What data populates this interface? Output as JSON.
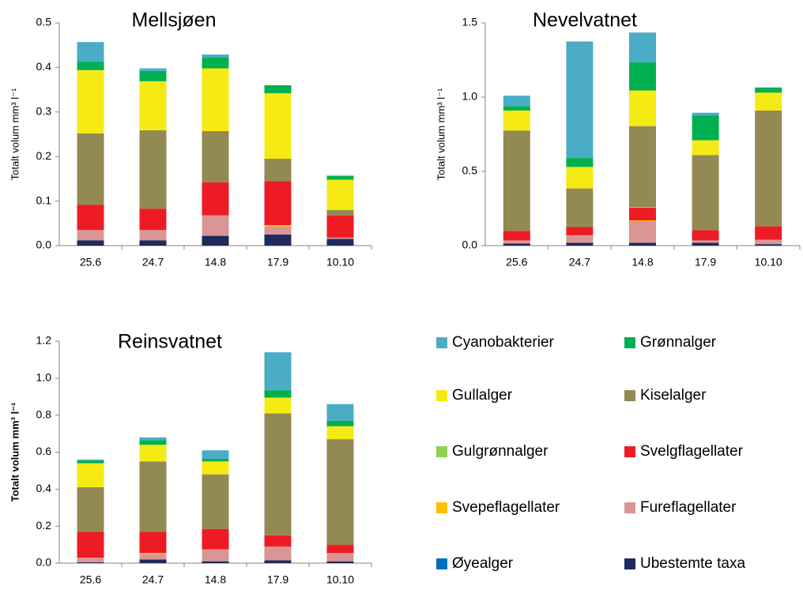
{
  "legend": [
    {
      "name": "Cyanobakterier",
      "color": "#4bacc6"
    },
    {
      "name": "Grønnalger",
      "color": "#00b050"
    },
    {
      "name": "Gullalger",
      "color": "#f5ea14"
    },
    {
      "name": "Kiselalger",
      "color": "#938953"
    },
    {
      "name": "Gulgrønnalger",
      "color": "#92d050"
    },
    {
      "name": "Svelgflagellater",
      "color": "#ed1c24"
    },
    {
      "name": "Svepeflagellater",
      "color": "#ffc000"
    },
    {
      "name": "Fureflagellater",
      "color": "#da9694"
    },
    {
      "name": "Øyealger",
      "color": "#0070c0"
    },
    {
      "name": "Ubestemte taxa",
      "color": "#1f2a5c"
    }
  ],
  "chart_data": [
    {
      "type": "bar",
      "stacked": true,
      "title": "Mellsjøen",
      "y_label": "Totalt volum mm³ l⁻¹",
      "categories": [
        "25.6",
        "24.7",
        "14.8",
        "17.9",
        "10.10"
      ],
      "ylim": [
        0,
        0.5
      ],
      "yticks": [
        {
          "value": 0,
          "label": "0.0"
        },
        0.1,
        0.2,
        0.3,
        0.4,
        0.5
      ],
      "series": [
        {
          "values": [
            0.044,
            0.006,
            0.007,
            0,
            0
          ]
        },
        {
          "values": [
            0.019,
            0.023,
            0.024,
            0.018,
            0.009
          ]
        },
        {
          "values": [
            0.142,
            0.11,
            0.141,
            0.147,
            0.068
          ]
        },
        {
          "values": [
            0.16,
            0.176,
            0.115,
            0.05,
            0.012
          ]
        },
        {
          "values": [
            0,
            0,
            0,
            0,
            0
          ]
        },
        {
          "values": [
            0.057,
            0.048,
            0.074,
            0.099,
            0.05
          ]
        },
        {
          "values": [
            0,
            0,
            0,
            0.003,
            0
          ]
        },
        {
          "values": [
            0.023,
            0.023,
            0.046,
            0.018,
            0.003
          ]
        },
        {
          "values": [
            0,
            0,
            0,
            0,
            0
          ]
        },
        {
          "values": [
            0.012,
            0.012,
            0.022,
            0.025,
            0.015
          ]
        }
      ]
    },
    {
      "type": "bar",
      "stacked": true,
      "title": "Nevelvatnet",
      "y_label": "Totalt volum mm³ l⁻¹",
      "categories": [
        "25.6",
        "24.7",
        "14.8",
        "17.9",
        "10.10"
      ],
      "ylim": [
        0,
        1.5
      ],
      "yticks": [
        {
          "value": 0,
          "label": "0.0"
        },
        0.5,
        {
          "value": 1,
          "label": "1.0"
        },
        1.5
      ],
      "series": [
        {
          "values": [
            0.07,
            0.785,
            0.2,
            0.02,
            0
          ]
        },
        {
          "values": [
            0.03,
            0.06,
            0.19,
            0.165,
            0.035
          ]
        },
        {
          "values": [
            0.135,
            0.145,
            0.24,
            0.1,
            0.12
          ]
        },
        {
          "values": [
            0.675,
            0.26,
            0.545,
            0.505,
            0.78
          ]
        },
        {
          "values": [
            0,
            0,
            0.005,
            0,
            0
          ]
        },
        {
          "values": [
            0.065,
            0.055,
            0.085,
            0.07,
            0.09
          ]
        },
        {
          "values": [
            0,
            0,
            0.005,
            0,
            0
          ]
        },
        {
          "values": [
            0.02,
            0.05,
            0.145,
            0.015,
            0.03
          ]
        },
        {
          "values": [
            0,
            0,
            0,
            0,
            0
          ]
        },
        {
          "values": [
            0.015,
            0.02,
            0.02,
            0.02,
            0.01
          ]
        }
      ]
    },
    {
      "type": "bar",
      "stacked": true,
      "title": "Reinsvatnet",
      "y_label": "Totalt volum mm³ l⁻¹",
      "categories": [
        "25.6",
        "24.7",
        "14.8",
        "17.9",
        "10.10"
      ],
      "ylim": [
        0,
        1.2
      ],
      "yticks": [
        {
          "value": 0,
          "label": "0.0"
        },
        0.2,
        0.4,
        0.6,
        0.8,
        {
          "value": 1,
          "label": "1.0"
        },
        1.2
      ],
      "series": [
        {
          "values": [
            0.005,
            0.015,
            0.045,
            0.205,
            0.09
          ]
        },
        {
          "values": [
            0.015,
            0.025,
            0.015,
            0.04,
            0.03
          ]
        },
        {
          "values": [
            0.13,
            0.09,
            0.07,
            0.085,
            0.07
          ]
        },
        {
          "values": [
            0.24,
            0.38,
            0.295,
            0.66,
            0.57
          ]
        },
        {
          "values": [
            0,
            0,
            0,
            0,
            0
          ]
        },
        {
          "values": [
            0.14,
            0.115,
            0.11,
            0.06,
            0.045
          ]
        },
        {
          "values": [
            0,
            0.005,
            0,
            0,
            0
          ]
        },
        {
          "values": [
            0.025,
            0.03,
            0.065,
            0.075,
            0.045
          ]
        },
        {
          "values": [
            0,
            0,
            0,
            0,
            0
          ]
        },
        {
          "values": [
            0.005,
            0.02,
            0.01,
            0.015,
            0.01
          ]
        }
      ]
    }
  ]
}
